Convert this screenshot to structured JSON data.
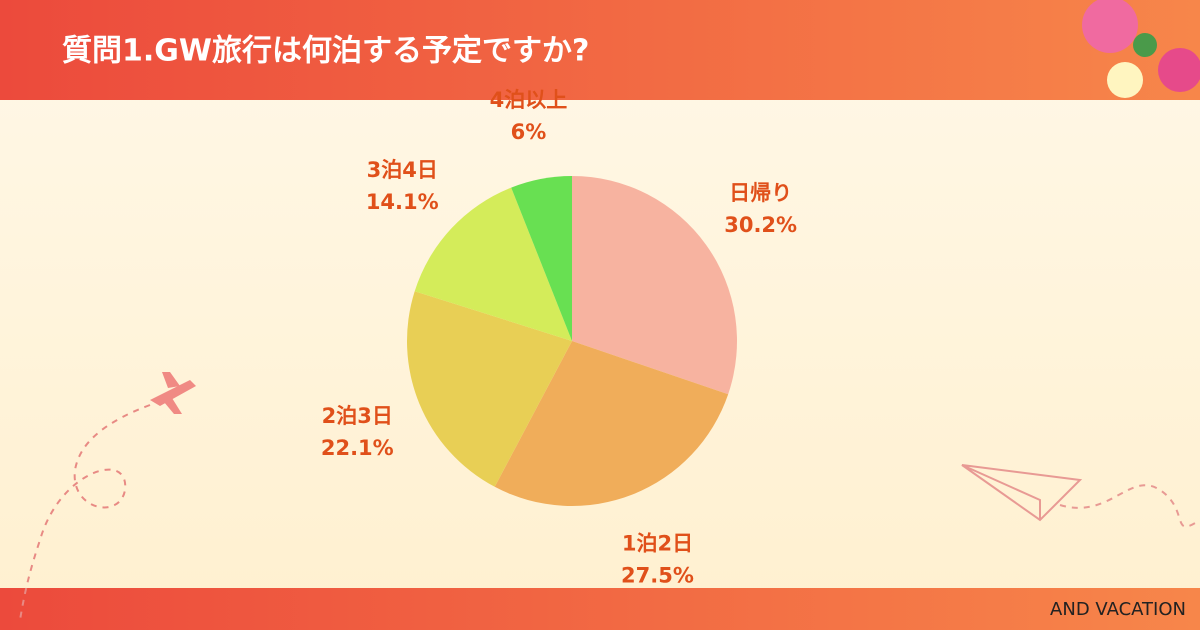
{
  "chart_data": {
    "type": "pie",
    "title": "質問1.GW旅行は何泊する予定ですか?",
    "categories": [
      "日帰り",
      "1泊2日",
      "2泊3日",
      "3泊4日",
      "4泊以上"
    ],
    "values": [
      30.2,
      27.5,
      22.1,
      14.1,
      6
    ],
    "value_labels": [
      "30.2%",
      "27.5%",
      "22.1%",
      "14.1%",
      "6%"
    ],
    "colors": [
      "#f7b3a0",
      "#f0ad5a",
      "#e8cf55",
      "#d4ec5a",
      "#68e052"
    ]
  },
  "footer": "AND VACATION"
}
